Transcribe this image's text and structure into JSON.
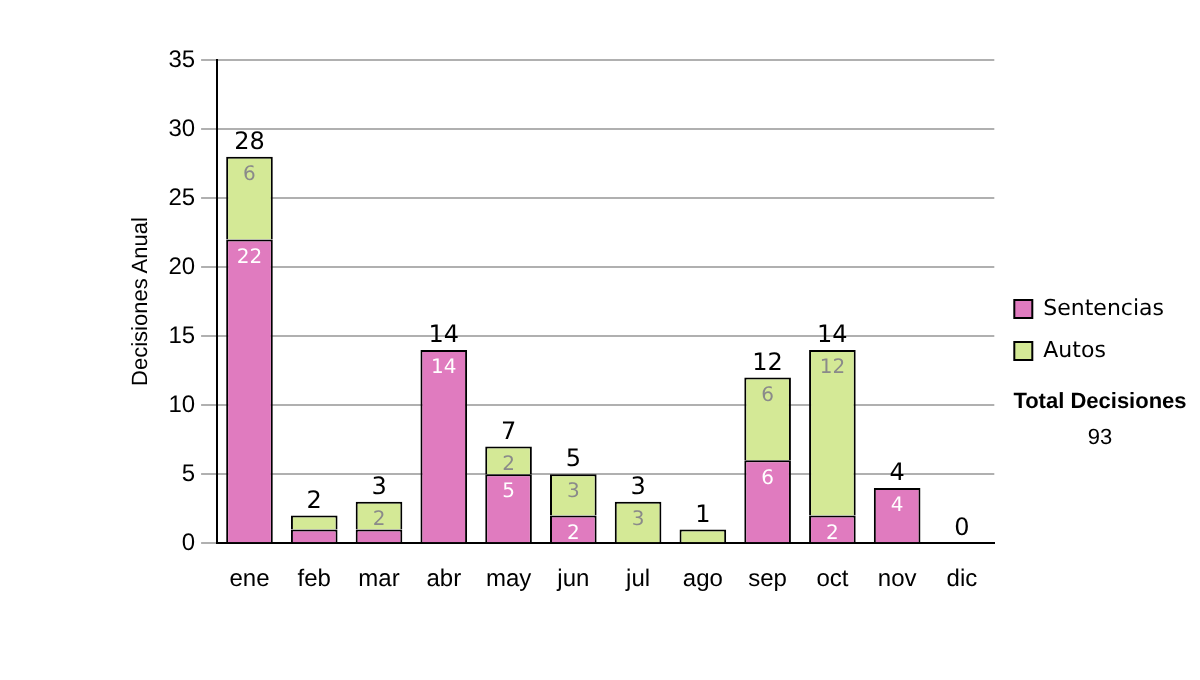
{
  "chart_data": {
    "type": "bar",
    "stacked": true,
    "ylabel": "Decisiones Anual",
    "categories": [
      "ene",
      "feb",
      "mar",
      "abr",
      "may",
      "jun",
      "jul",
      "ago",
      "sep",
      "oct",
      "nov",
      "dic"
    ],
    "series": [
      {
        "name": "Sentencias",
        "color": "#e07bbf",
        "values": [
          22,
          1,
          1,
          14,
          5,
          2,
          0,
          0,
          6,
          2,
          4,
          0
        ],
        "value_labels": [
          "22",
          null,
          null,
          "14",
          "5",
          "2",
          null,
          null,
          "6",
          "2",
          "4",
          null
        ]
      },
      {
        "name": "Autos",
        "color": "#d4e996",
        "values": [
          6,
          1,
          2,
          0,
          2,
          3,
          3,
          1,
          6,
          12,
          0,
          0
        ],
        "value_labels": [
          "6",
          null,
          "2",
          null,
          "2",
          "3",
          "3",
          null,
          "6",
          "12",
          null,
          null
        ]
      }
    ],
    "totals": [
      "28",
      "2",
      "3",
      "14",
      "7",
      "5",
      "3",
      "1",
      "12",
      "14",
      "4",
      "0"
    ],
    "ylim": [
      0,
      35
    ],
    "yticks": [
      0,
      5,
      10,
      15,
      20,
      25,
      30,
      35
    ],
    "grid": "y",
    "legend": "right",
    "annotations": [
      "Total Decisiones",
      "93"
    ]
  }
}
